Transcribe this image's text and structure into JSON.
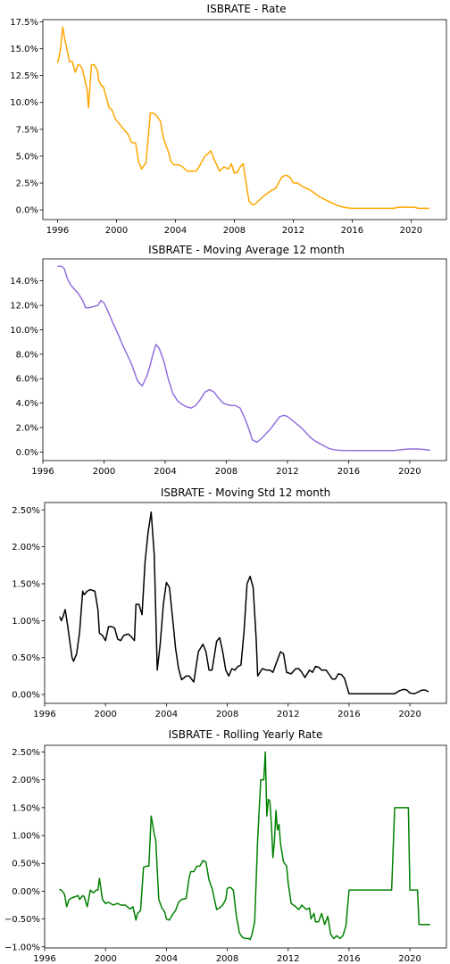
{
  "chart_data": [
    {
      "type": "line",
      "title": "ISBRATE - Rate",
      "xlabel": "",
      "ylabel": "",
      "xlim": [
        1995.0,
        2022.4
      ],
      "ylim": [
        -0.009,
        0.177
      ],
      "x_ticks": [
        1996,
        2000,
        2004,
        2008,
        2012,
        2016,
        2020
      ],
      "x_tick_labels": [
        "1996",
        "2000",
        "2004",
        "2008",
        "2012",
        "2016",
        "2020"
      ],
      "y_ticks": [
        0.0,
        0.025,
        0.05,
        0.075,
        0.1,
        0.125,
        0.15,
        0.175
      ],
      "y_tick_labels": [
        "0.0%",
        "2.5%",
        "5.0%",
        "7.5%",
        "10.0%",
        "12.5%",
        "15.0%",
        "17.5%"
      ],
      "grid": false,
      "color": "#FFA500",
      "series": [
        {
          "x": [
            1996.0,
            1996.1,
            1996.2,
            1996.35,
            1996.5,
            1996.6,
            1996.7,
            1996.8,
            1997.0,
            1997.2,
            1997.4,
            1997.5,
            1997.6,
            1997.7,
            1998.0,
            1998.1,
            1998.3,
            1998.5,
            1998.7,
            1998.8,
            1999.0,
            1999.1,
            1999.3,
            1999.5,
            1999.7,
            1999.9,
            2000.2,
            2000.5,
            2000.8,
            2001.0,
            2001.3,
            2001.5,
            2001.7,
            2002.0,
            2002.1,
            2002.3,
            2002.5,
            2002.7,
            2003.0,
            2003.1,
            2003.3,
            2003.5,
            2003.7,
            2003.9,
            2004.2,
            2004.5,
            2004.8,
            2005.0,
            2005.4,
            2005.6,
            2005.8,
            2006.0,
            2006.2,
            2006.4,
            2006.6,
            2006.8,
            2007.0,
            2007.3,
            2007.6,
            2007.8,
            2008.0,
            2008.2,
            2008.4,
            2008.6,
            2008.8,
            2009.0,
            2009.2,
            2009.4,
            2009.6,
            2010.0,
            2010.2,
            2010.5,
            2010.8,
            2011.0,
            2011.2,
            2011.4,
            2011.6,
            2011.8,
            2012.0,
            2012.3,
            2012.6,
            2012.9,
            2013.2,
            2013.5,
            2013.8,
            2014.1,
            2014.4,
            2014.7,
            2015.0,
            2015.3,
            2015.6,
            2016.0,
            2017.0,
            2018.0,
            2018.8,
            2019.2,
            2019.6,
            2020.2,
            2020.5,
            2020.8,
            2021.2
          ],
          "y": [
            0.137,
            0.142,
            0.15,
            0.17,
            0.158,
            0.152,
            0.145,
            0.138,
            0.138,
            0.128,
            0.135,
            0.135,
            0.133,
            0.13,
            0.112,
            0.095,
            0.135,
            0.135,
            0.13,
            0.12,
            0.115,
            0.115,
            0.105,
            0.095,
            0.093,
            0.085,
            0.08,
            0.075,
            0.07,
            0.063,
            0.062,
            0.045,
            0.038,
            0.044,
            0.06,
            0.09,
            0.09,
            0.088,
            0.082,
            0.072,
            0.062,
            0.055,
            0.045,
            0.042,
            0.042,
            0.04,
            0.036,
            0.036,
            0.036,
            0.04,
            0.045,
            0.05,
            0.052,
            0.055,
            0.048,
            0.042,
            0.036,
            0.04,
            0.038,
            0.043,
            0.034,
            0.035,
            0.04,
            0.043,
            0.025,
            0.008,
            0.005,
            0.005,
            0.008,
            0.013,
            0.015,
            0.018,
            0.02,
            0.025,
            0.03,
            0.032,
            0.032,
            0.03,
            0.025,
            0.025,
            0.022,
            0.02,
            0.018,
            0.015,
            0.012,
            0.01,
            0.008,
            0.006,
            0.004,
            0.003,
            0.002,
            0.0015,
            0.0015,
            0.0015,
            0.0015,
            0.0025,
            0.0025,
            0.0025,
            0.0015,
            0.0015,
            0.0015
          ]
        }
      ]
    },
    {
      "type": "line",
      "title": "ISBRATE - Moving Average 12 month",
      "xlabel": "",
      "ylabel": "",
      "xlim": [
        1996.0,
        2022.4
      ],
      "ylim": [
        -0.007,
        0.158
      ],
      "x_ticks": [
        1996,
        2000,
        2004,
        2008,
        2012,
        2016,
        2020
      ],
      "x_tick_labels": [
        "1996",
        "2000",
        "2004",
        "2008",
        "2012",
        "2016",
        "2020"
      ],
      "y_ticks": [
        0.0,
        0.02,
        0.04,
        0.06,
        0.08,
        0.1,
        0.12,
        0.14
      ],
      "y_tick_labels": [
        "0.0%",
        "2.0%",
        "4.0%",
        "6.0%",
        "8.0%",
        "10.0%",
        "12.0%",
        "14.0%"
      ],
      "grid": false,
      "color": "#9370DB",
      "series": [
        {
          "x": [
            1997.0,
            1997.2,
            1997.4,
            1997.6,
            1997.8,
            1998.0,
            1998.3,
            1998.6,
            1998.8,
            1999.0,
            1999.3,
            1999.6,
            1999.8,
            2000.0,
            2000.3,
            2000.6,
            2000.9,
            2001.2,
            2001.5,
            2001.8,
            2002.0,
            2002.2,
            2002.5,
            2002.8,
            2003.0,
            2003.2,
            2003.4,
            2003.6,
            2003.9,
            2004.2,
            2004.5,
            2004.8,
            2005.1,
            2005.4,
            2005.7,
            2006.0,
            2006.3,
            2006.6,
            2006.9,
            2007.2,
            2007.5,
            2007.8,
            2008.0,
            2008.3,
            2008.6,
            2008.9,
            2009.2,
            2009.5,
            2009.7,
            2010.0,
            2010.3,
            2010.6,
            2010.9,
            2011.2,
            2011.5,
            2011.8,
            2012.0,
            2012.3,
            2012.6,
            2012.9,
            2013.2,
            2013.5,
            2013.8,
            2014.1,
            2014.4,
            2014.7,
            2015.0,
            2015.3,
            2015.6,
            2015.9,
            2016.2,
            2017.0,
            2018.0,
            2019.0,
            2019.5,
            2020.0,
            2020.5,
            2021.0,
            2021.3
          ],
          "y": [
            0.152,
            0.152,
            0.15,
            0.142,
            0.137,
            0.134,
            0.13,
            0.124,
            0.118,
            0.118,
            0.119,
            0.12,
            0.124,
            0.122,
            0.114,
            0.105,
            0.097,
            0.088,
            0.08,
            0.072,
            0.065,
            0.058,
            0.054,
            0.062,
            0.07,
            0.08,
            0.088,
            0.085,
            0.075,
            0.06,
            0.048,
            0.042,
            0.039,
            0.037,
            0.036,
            0.038,
            0.043,
            0.049,
            0.051,
            0.049,
            0.044,
            0.04,
            0.039,
            0.038,
            0.038,
            0.036,
            0.028,
            0.018,
            0.01,
            0.008,
            0.011,
            0.015,
            0.019,
            0.024,
            0.029,
            0.03,
            0.029,
            0.026,
            0.023,
            0.02,
            0.016,
            0.012,
            0.009,
            0.007,
            0.005,
            0.003,
            0.002,
            0.0015,
            0.0013,
            0.0012,
            0.0012,
            0.0012,
            0.0012,
            0.0012,
            0.002,
            0.0025,
            0.0025,
            0.002,
            0.0015
          ]
        }
      ]
    },
    {
      "type": "line",
      "title": "ISBRATE - Moving Std 12 month",
      "xlabel": "",
      "ylabel": "",
      "xlim": [
        1996.0,
        2022.4
      ],
      "ylim": [
        -0.0012,
        0.026
      ],
      "x_ticks": [
        1996,
        2000,
        2004,
        2008,
        2012,
        2016,
        2020
      ],
      "x_tick_labels": [
        "1996",
        "2000",
        "2004",
        "2008",
        "2012",
        "2016",
        "2020"
      ],
      "y_ticks": [
        0.0,
        0.005,
        0.01,
        0.015,
        0.02,
        0.025
      ],
      "y_tick_labels": [
        "0.00%",
        "0.50%",
        "1.00%",
        "1.50%",
        "2.00%",
        "2.50%"
      ],
      "grid": false,
      "color": "#000000",
      "series": [
        {
          "x": [
            1997.0,
            1997.1,
            1997.2,
            1997.35,
            1997.5,
            1997.6,
            1997.8,
            1997.9,
            1998.1,
            1998.3,
            1998.5,
            1998.6,
            1998.8,
            1999.0,
            1999.3,
            1999.5,
            1999.6,
            1999.8,
            2000.0,
            2000.2,
            2000.4,
            2000.6,
            2000.8,
            2001.0,
            2001.2,
            2001.5,
            2001.7,
            2001.9,
            2002.0,
            2002.2,
            2002.4,
            2002.6,
            2002.8,
            2003.0,
            2003.2,
            2003.4,
            2003.6,
            2003.8,
            2004.0,
            2004.2,
            2004.4,
            2004.6,
            2004.8,
            2005.0,
            2005.3,
            2005.5,
            2005.8,
            2006.1,
            2006.4,
            2006.6,
            2006.8,
            2007.0,
            2007.3,
            2007.5,
            2007.7,
            2007.9,
            2008.1,
            2008.3,
            2008.5,
            2008.7,
            2008.9,
            2009.1,
            2009.3,
            2009.5,
            2009.7,
            2009.9,
            2010.0,
            2010.3,
            2010.6,
            2010.8,
            2011.0,
            2011.3,
            2011.5,
            2011.7,
            2011.9,
            2012.2,
            2012.5,
            2012.7,
            2012.9,
            2013.1,
            2013.4,
            2013.6,
            2013.8,
            2014.0,
            2014.2,
            2014.5,
            2014.7,
            2014.9,
            2015.1,
            2015.3,
            2015.5,
            2015.7,
            2016.0,
            2017.0,
            2018.0,
            2019.0,
            2019.3,
            2019.6,
            2019.8,
            2020.0,
            2020.3,
            2020.5,
            2020.8,
            2021.0,
            2021.2
          ],
          "y": [
            0.0105,
            0.01,
            0.0105,
            0.0115,
            0.0095,
            0.008,
            0.005,
            0.0045,
            0.0055,
            0.0085,
            0.014,
            0.0135,
            0.014,
            0.0142,
            0.014,
            0.0115,
            0.0083,
            0.008,
            0.0073,
            0.0092,
            0.0092,
            0.009,
            0.0075,
            0.0073,
            0.008,
            0.0082,
            0.0078,
            0.0073,
            0.0122,
            0.0122,
            0.0108,
            0.018,
            0.022,
            0.0247,
            0.019,
            0.0033,
            0.007,
            0.0122,
            0.0152,
            0.0145,
            0.0105,
            0.0063,
            0.0035,
            0.002,
            0.0025,
            0.0025,
            0.0017,
            0.0058,
            0.0068,
            0.0058,
            0.0033,
            0.0033,
            0.0072,
            0.0077,
            0.0058,
            0.0033,
            0.0025,
            0.0035,
            0.0033,
            0.0038,
            0.004,
            0.0085,
            0.015,
            0.016,
            0.0145,
            0.0075,
            0.0025,
            0.0035,
            0.0033,
            0.0033,
            0.003,
            0.0047,
            0.0058,
            0.0055,
            0.003,
            0.0028,
            0.0035,
            0.0035,
            0.003,
            0.0023,
            0.0033,
            0.003,
            0.0038,
            0.0037,
            0.0033,
            0.0033,
            0.0027,
            0.0021,
            0.0021,
            0.0028,
            0.0027,
            0.0022,
            0.0001,
            0.0001,
            0.0001,
            0.0001,
            0.0005,
            0.0007,
            0.0006,
            0.0002,
            0.0001,
            0.0003,
            0.0006,
            0.0006,
            0.0004
          ]
        }
      ]
    },
    {
      "type": "line",
      "title": "ISBRATE - Rolling Yearly Rate",
      "xlabel": "",
      "ylabel": "",
      "xlim": [
        1996.0,
        2022.4
      ],
      "ylim": [
        -0.0102,
        0.0262
      ],
      "x_ticks": [
        1996,
        2000,
        2004,
        2008,
        2012,
        2016,
        2020
      ],
      "x_tick_labels": [
        "1996",
        "2000",
        "2004",
        "2008",
        "2012",
        "2016",
        "2020"
      ],
      "y_ticks": [
        -0.01,
        -0.005,
        0.0,
        0.005,
        0.01,
        0.015,
        0.02,
        0.025
      ],
      "y_tick_labels": [
        "−1.00%",
        "−0.50%",
        "0.00%",
        "0.50%",
        "1.00%",
        "1.50%",
        "2.00%",
        "2.50%"
      ],
      "grid": false,
      "color": "#008000",
      "series": [
        {
          "x": [
            1997.0,
            1997.1,
            1997.2,
            1997.3,
            1997.45,
            1997.6,
            1997.8,
            1998.0,
            1998.2,
            1998.3,
            1998.5,
            1998.6,
            1998.8,
            1999.0,
            1999.2,
            1999.4,
            1999.5,
            1999.6,
            1999.8,
            2000.0,
            2000.2,
            2000.5,
            2000.8,
            2001.0,
            2001.3,
            2001.6,
            2001.8,
            2002.0,
            2002.1,
            2002.3,
            2002.5,
            2002.7,
            2002.85,
            2003.0,
            2003.1,
            2003.2,
            2003.3,
            2003.5,
            2003.7,
            2003.9,
            2004.0,
            2004.2,
            2004.4,
            2004.6,
            2004.8,
            2005.0,
            2005.3,
            2005.5,
            2005.6,
            2005.8,
            2006.0,
            2006.2,
            2006.4,
            2006.6,
            2006.8,
            2007.0,
            2007.3,
            2007.5,
            2007.7,
            2007.9,
            2008.0,
            2008.2,
            2008.4,
            2008.6,
            2008.8,
            2009.0,
            2009.2,
            2009.4,
            2009.5,
            2009.6,
            2009.8,
            2010.0,
            2010.2,
            2010.4,
            2010.5,
            2010.6,
            2010.7,
            2010.8,
            2010.9,
            2011.0,
            2011.1,
            2011.2,
            2011.3,
            2011.4,
            2011.5,
            2011.7,
            2011.9,
            2012.0,
            2012.2,
            2012.5,
            2012.7,
            2012.9,
            2013.0,
            2013.2,
            2013.4,
            2013.5,
            2013.7,
            2013.8,
            2014.0,
            2014.2,
            2014.4,
            2014.6,
            2014.8,
            2015.0,
            2015.2,
            2015.4,
            2015.6,
            2015.8,
            2016.0,
            2016.5,
            2017.0,
            2017.5,
            2018.0,
            2018.5,
            2018.8,
            2019.0,
            2019.5,
            2019.9,
            2020.0,
            2020.3,
            2020.5,
            2020.6,
            2021.0,
            2021.3
          ],
          "y": [
            0.0003,
            0.0002,
            -0.0002,
            -0.0005,
            -0.0028,
            -0.0015,
            -0.0012,
            -0.001,
            -0.0008,
            -0.0015,
            -0.0008,
            -0.001,
            -0.0028,
            0.0002,
            -0.0003,
            0.0002,
            0.0002,
            0.0023,
            -0.0015,
            -0.0022,
            -0.002,
            -0.0025,
            -0.0022,
            -0.0025,
            -0.0025,
            -0.0032,
            -0.0028,
            -0.0052,
            -0.004,
            -0.0035,
            0.0043,
            0.0045,
            0.0045,
            0.0135,
            0.012,
            0.0102,
            0.0092,
            -0.0015,
            -0.003,
            -0.0038,
            -0.005,
            -0.0052,
            -0.0042,
            -0.0035,
            -0.002,
            -0.0015,
            -0.0013,
            0.0025,
            0.0035,
            0.0035,
            0.0045,
            0.0045,
            0.0055,
            0.0052,
            0.002,
            0.0005,
            -0.0033,
            -0.003,
            -0.0025,
            -0.0015,
            0.0005,
            0.0007,
            0.0002,
            -0.0045,
            -0.0075,
            -0.0083,
            -0.0085,
            -0.0085,
            -0.0087,
            -0.008,
            -0.0055,
            0.0095,
            0.02,
            0.02,
            0.025,
            0.0135,
            0.0165,
            0.0162,
            0.012,
            0.006,
            0.009,
            0.0145,
            0.011,
            0.012,
            0.0085,
            0.0052,
            0.0045,
            0.0015,
            -0.0022,
            -0.0028,
            -0.0033,
            -0.0025,
            -0.0028,
            -0.0033,
            -0.003,
            -0.005,
            -0.004,
            -0.0055,
            -0.0055,
            -0.004,
            -0.006,
            -0.0045,
            -0.0078,
            -0.0085,
            -0.008,
            -0.0085,
            -0.008,
            -0.0062,
            0.0002,
            0.0002,
            0.0002,
            0.0002,
            0.0002,
            0.0002,
            0.0002,
            0.015,
            0.015,
            0.015,
            0.0002,
            0.0002,
            0.0002,
            -0.006,
            -0.006,
            -0.006
          ]
        }
      ]
    }
  ]
}
